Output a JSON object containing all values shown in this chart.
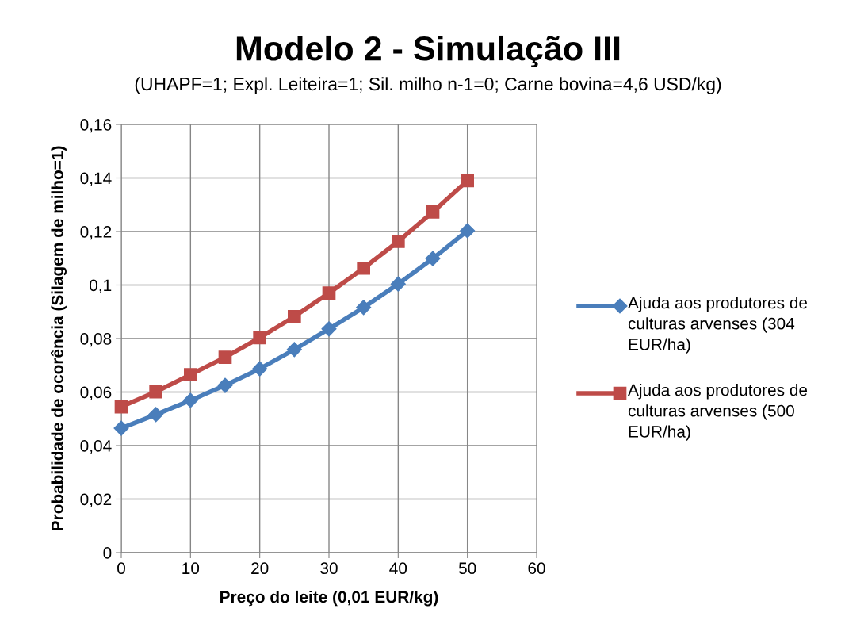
{
  "chart_data": {
    "type": "line",
    "title": "Modelo 2 - Simulação III",
    "subtitle": "(UHAPF=1; Expl. Leiteira=1; Sil. milho n-1=0; Carne bovina=4,6 USD/kg)",
    "xlabel": "Preço do leite (0,01 EUR/kg)",
    "ylabel": "Probabilidade de ocorência (Silagem de milho=1)",
    "x": [
      0,
      5,
      10,
      15,
      20,
      25,
      30,
      35,
      40,
      45,
      50
    ],
    "series": [
      {
        "name": "Ajuda aos produtores de culturas arvenses (304 EUR/ha)",
        "color": "#4a7ebb",
        "marker": "diamond",
        "values": [
          0.0465,
          0.0516,
          0.0569,
          0.0625,
          0.0687,
          0.0759,
          0.0836,
          0.0916,
          0.1004,
          0.1099,
          0.1203
        ]
      },
      {
        "name": "Ajuda aos produtores de culturas arvenses (500 EUR/ha)",
        "color": "#be4b48",
        "marker": "square",
        "values": [
          0.0545,
          0.0601,
          0.0665,
          0.073,
          0.0803,
          0.0882,
          0.097,
          0.1063,
          0.1163,
          0.1273,
          0.139
        ]
      }
    ],
    "xlim": [
      0,
      60
    ],
    "xticks": [
      0,
      10,
      20,
      30,
      40,
      50,
      60
    ],
    "ylim": [
      0,
      0.16
    ],
    "yticks": [
      {
        "value": 0,
        "label": "0"
      },
      {
        "value": 0.02,
        "label": "0,02"
      },
      {
        "value": 0.04,
        "label": "0,04"
      },
      {
        "value": 0.06,
        "label": "0,06"
      },
      {
        "value": 0.08,
        "label": "0,08"
      },
      {
        "value": 0.1,
        "label": "0,1"
      },
      {
        "value": 0.12,
        "label": "0,12"
      },
      {
        "value": 0.14,
        "label": "0,14"
      },
      {
        "value": 0.16,
        "label": "0,16"
      }
    ],
    "grid": true,
    "legend": "right",
    "line_style": "solid"
  }
}
